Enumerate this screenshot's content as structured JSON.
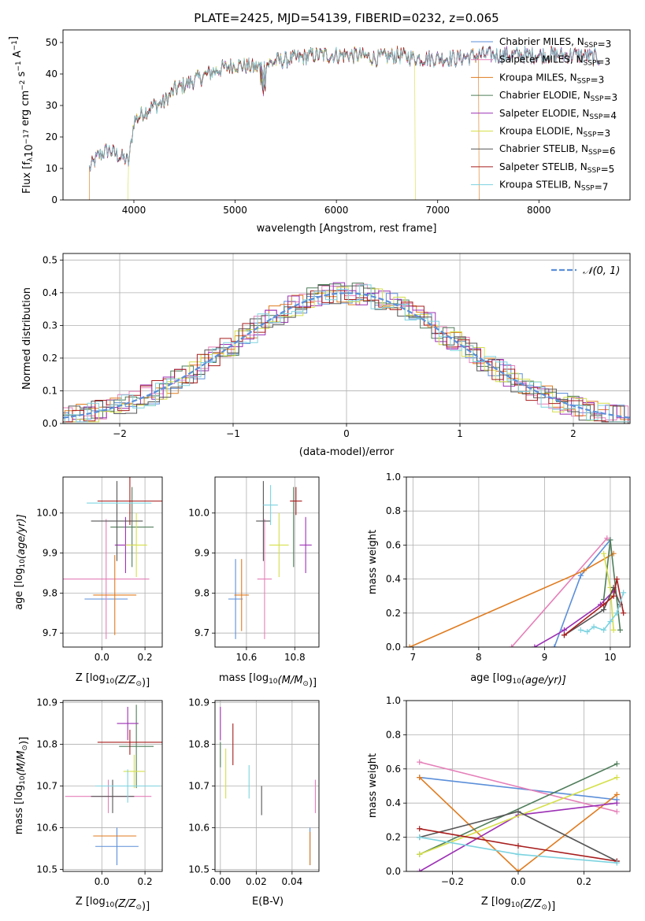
{
  "figure_title": "PLATE=2425, MJD=54139, FIBERID=0232, z=0.065",
  "colors": {
    "Chabrier MILES": "#5b8fd9",
    "Salpeter MILES": "#e57fb8",
    "Kroupa MILES": "#e07b1f",
    "Chabrier ELODIE": "#4f7d5a",
    "Salpeter ELODIE": "#9c31b5",
    "Kroupa ELODIE": "#d5e04a",
    "Chabrier STELIB": "#555555",
    "Salpeter STELIB": "#a81d1d",
    "Kroupa STELIB": "#7dd3e0",
    "gauss": "#5b8fd9",
    "grid": "#b0b0b0"
  },
  "chart_data": [
    {
      "id": "spectrum",
      "type": "line",
      "title": "PLATE=2425, MJD=54139, FIBERID=0232, z=0.065",
      "xlabel": "wavelength [Angstrom, rest frame]",
      "ylabel_text": "Flux [f",
      "ylabel_sub": "λ",
      "ylabel_mid": "10",
      "ylabel_sup1": "−17",
      "ylabel_rest": " erg cm",
      "ylabel_sup2": "−2",
      "ylabel_s": " s",
      "ylabel_sup3": "−1",
      "ylabel_A": " A",
      "ylabel_sup4": "−1",
      "ylabel_end": "]",
      "xlim": [
        3300,
        8900
      ],
      "ylim": [
        0,
        54
      ],
      "xticks": [
        4000,
        5000,
        6000,
        7000,
        8000
      ],
      "yticks": [
        0,
        10,
        20,
        30,
        40,
        50
      ],
      "grid": false,
      "legend_position": "top-right",
      "legend": [
        {
          "pre": "Chabrier MILES, N",
          "sub": "SSP",
          "post": "=3",
          "series": "Chabrier MILES"
        },
        {
          "pre": "Salpeter MILES, N",
          "sub": "SSP",
          "post": "=3",
          "series": "Salpeter MILES"
        },
        {
          "pre": "Kroupa MILES, N",
          "sub": "SSP",
          "post": "=3",
          "series": "Kroupa MILES"
        },
        {
          "pre": "Chabrier ELODIE, N",
          "sub": "SSP",
          "post": "=3",
          "series": "Chabrier ELODIE"
        },
        {
          "pre": "Salpeter ELODIE, N",
          "sub": "SSP",
          "post": "=4",
          "series": "Salpeter ELODIE"
        },
        {
          "pre": "Kroupa ELODIE, N",
          "sub": "SSP",
          "post": "=3",
          "series": "Kroupa ELODIE"
        },
        {
          "pre": "Chabrier STELIB, N",
          "sub": "SSP",
          "post": "=6",
          "series": "Chabrier STELIB"
        },
        {
          "pre": "Salpeter STELIB, N",
          "sub": "SSP",
          "post": "=5",
          "series": "Salpeter STELIB"
        },
        {
          "pre": "Kroupa STELIB, N",
          "sub": "SSP",
          "post": "=7",
          "series": "Kroupa STELIB"
        }
      ],
      "continuum": {
        "x": [
          3560,
          3650,
          3750,
          3850,
          3950,
          4000,
          4100,
          4200,
          4300,
          4400,
          4600,
          4800,
          5000,
          5200,
          5400,
          5600,
          5800,
          6000,
          6200,
          6400,
          6600,
          6800,
          7000,
          7200,
          7400,
          7600,
          7800,
          8000,
          8200,
          8400,
          8600
        ],
        "y": [
          10,
          14,
          16,
          14,
          12,
          25,
          28,
          30,
          31,
          35,
          38,
          41,
          43,
          42,
          44,
          45,
          46,
          46,
          46,
          45,
          46,
          45,
          45,
          45,
          46,
          46,
          46,
          46,
          46,
          46,
          45
        ]
      },
      "mask_edges": {
        "Kroupa ELODIE": {
          "start": 3940,
          "stop": 6780
        },
        "Kroupa MILES": {
          "start": 3560,
          "stop": 7410
        }
      }
    },
    {
      "id": "residuals",
      "type": "histogram",
      "xlabel": "(data-model)/error",
      "ylabel": "Normed distribution",
      "xlim": [
        -2.5,
        2.5
      ],
      "ylim": [
        0,
        0.52
      ],
      "xticks": [
        -2,
        -1,
        0,
        1,
        2
      ],
      "yticks": [
        0.0,
        0.1,
        0.2,
        0.3,
        0.4,
        0.5
      ],
      "grid": true,
      "legend_position": "top-right",
      "gauss_label": "𝒩(0, 1)",
      "bin_width": 0.1,
      "bin_start": -2.5
    },
    {
      "id": "age_vs_Z",
      "type": "errorbar",
      "xlabel_pre": "Z [log",
      "xlabel_sub": "10",
      "xlabel_post": "(Z/Z",
      "xlabel_sub2": "⊙",
      "xlabel_end": ")]",
      "ylabel_pre": "age  [log",
      "ylabel_sub": "10",
      "ylabel_post": "(age/yr)]",
      "xlim": [
        -0.18,
        0.28
      ],
      "ylim": [
        9.665,
        10.09
      ],
      "xticks": [
        0.0,
        0.2
      ],
      "yticks": [
        9.7,
        9.8,
        9.9,
        10.0
      ],
      "grid": true,
      "points": [
        {
          "s": "Chabrier MILES",
          "x": 0.02,
          "y": 9.785,
          "xe": 0.1,
          "ye": 0.0
        },
        {
          "s": "Salpeter MILES",
          "x": 0.02,
          "y": 9.835,
          "xe": 0.2,
          "ye": 0.15
        },
        {
          "s": "Kroupa MILES",
          "x": 0.06,
          "y": 9.795,
          "xe": 0.1,
          "ye": 0.1
        },
        {
          "s": "Chabrier ELODIE",
          "x": 0.14,
          "y": 9.965,
          "xe": 0.1,
          "ye": 0.1
        },
        {
          "s": "Salpeter ELODIE",
          "x": 0.11,
          "y": 9.92,
          "xe": 0.05,
          "ye": 0.07
        },
        {
          "s": "Kroupa ELODIE",
          "x": 0.16,
          "y": 9.92,
          "xe": 0.05,
          "ye": 0.08
        },
        {
          "s": "Chabrier STELIB",
          "x": 0.07,
          "y": 9.98,
          "xe": 0.12,
          "ye": 0.1
        },
        {
          "s": "Salpeter STELIB",
          "x": 0.13,
          "y": 10.03,
          "xe": 0.15,
          "ye": 0.06
        },
        {
          "s": "Kroupa STELIB",
          "x": 0.08,
          "y": 10.025,
          "xe": 0.15,
          "ye": 0.0
        }
      ]
    },
    {
      "id": "age_vs_mass",
      "type": "errorbar",
      "xlabel_pre": "mass [log",
      "xlabel_sub": "10",
      "xlabel_post": "(M/M",
      "xlabel_sub2": "⊙",
      "xlabel_end": ")]",
      "xlim": [
        10.47,
        10.9
      ],
      "ylim": [
        9.665,
        10.09
      ],
      "xticks": [
        10.6,
        10.8
      ],
      "yticks": [
        9.7,
        9.8,
        9.9,
        10.0
      ],
      "grid": true,
      "points": [
        {
          "s": "Chabrier MILES",
          "x": 10.555,
          "y": 9.785,
          "xe": 0.03,
          "ye": 0.1
        },
        {
          "s": "Salpeter MILES",
          "x": 10.675,
          "y": 9.835,
          "xe": 0.03,
          "ye": 0.15
        },
        {
          "s": "Kroupa MILES",
          "x": 10.58,
          "y": 9.795,
          "xe": 0.03,
          "ye": 0.09
        },
        {
          "s": "Chabrier ELODIE",
          "x": 10.795,
          "y": 9.965,
          "xe": 0.0,
          "ye": 0.1
        },
        {
          "s": "Salpeter ELODIE",
          "x": 10.845,
          "y": 9.92,
          "xe": 0.025,
          "ye": 0.07
        },
        {
          "s": "Kroupa ELODIE",
          "x": 10.735,
          "y": 9.92,
          "xe": 0.04,
          "ye": 0.08
        },
        {
          "s": "Chabrier STELIB",
          "x": 10.67,
          "y": 9.98,
          "xe": 0.03,
          "ye": 0.1
        },
        {
          "s": "Salpeter STELIB",
          "x": 10.805,
          "y": 10.03,
          "xe": 0.025,
          "ye": 0.035
        },
        {
          "s": "Kroupa STELIB",
          "x": 10.7,
          "y": 10.02,
          "xe": 0.03,
          "ye": 0.05
        }
      ]
    },
    {
      "id": "weight_vs_age",
      "type": "line",
      "xlabel_pre": "age  [log",
      "xlabel_sub": "10",
      "xlabel_post": "(age/yr)]",
      "ylabel": "mass weight",
      "xlim": [
        6.9,
        10.3
      ],
      "ylim": [
        0.0,
        1.0
      ],
      "xticks": [
        7,
        8,
        9,
        10
      ],
      "yticks": [
        0.0,
        0.2,
        0.4,
        0.6,
        0.8,
        1.0
      ],
      "grid": true,
      "series": [
        {
          "s": "Chabrier MILES",
          "x": [
            9.15,
            9.55,
            10.0
          ],
          "y": [
            0.0,
            0.42,
            0.63
          ]
        },
        {
          "s": "Salpeter MILES",
          "x": [
            8.5,
            9.95
          ],
          "y": [
            0.0,
            0.64
          ]
        },
        {
          "s": "Kroupa MILES",
          "x": [
            6.95,
            9.6,
            10.05
          ],
          "y": [
            0.0,
            0.45,
            0.55
          ]
        },
        {
          "s": "Chabrier ELODIE",
          "x": [
            9.9,
            10.0,
            10.15
          ],
          "y": [
            0.28,
            0.63,
            0.1
          ]
        },
        {
          "s": "Salpeter ELODIE",
          "x": [
            8.85,
            9.3,
            9.85,
            10.05
          ],
          "y": [
            0.0,
            0.1,
            0.25,
            0.33
          ]
        },
        {
          "s": "Kroupa ELODIE",
          "x": [
            9.9,
            10.0,
            10.05
          ],
          "y": [
            0.55,
            0.35,
            0.1
          ]
        },
        {
          "s": "Chabrier STELIB",
          "x": [
            9.3,
            9.9,
            10.05,
            10.15
          ],
          "y": [
            0.07,
            0.22,
            0.35,
            0.25
          ]
        },
        {
          "s": "Salpeter STELIB",
          "x": [
            9.3,
            9.9,
            10.05,
            10.1,
            10.2
          ],
          "y": [
            0.07,
            0.25,
            0.3,
            0.4,
            0.2
          ]
        },
        {
          "s": "Kroupa STELIB",
          "x": [
            9.55,
            9.65,
            9.75,
            9.9,
            10.0,
            10.1,
            10.2
          ],
          "y": [
            0.1,
            0.09,
            0.12,
            0.1,
            0.15,
            0.2,
            0.32
          ]
        }
      ]
    },
    {
      "id": "mass_vs_Z",
      "type": "errorbar",
      "xlabel_pre": "Z [log",
      "xlabel_sub": "10",
      "xlabel_post": "(Z/Z",
      "xlabel_sub2": "⊙",
      "xlabel_end": ")]",
      "ylabel_pre": "mass [log",
      "ylabel_sub": "10",
      "ylabel_post": "(M/M",
      "ylabel_sub2": "⊙",
      "ylabel_end": ")]",
      "xlim": [
        -0.18,
        0.28
      ],
      "ylim": [
        10.495,
        10.905
      ],
      "xticks": [
        0.0,
        0.2
      ],
      "yticks": [
        10.5,
        10.6,
        10.7,
        10.8,
        10.9
      ],
      "grid": true,
      "points": [
        {
          "s": "Chabrier MILES",
          "x": 0.07,
          "y": 10.555,
          "xe": 0.1,
          "ye": 0.045
        },
        {
          "s": "Salpeter MILES",
          "x": 0.03,
          "y": 10.675,
          "xe": 0.2,
          "ye": 0.04
        },
        {
          "s": "Kroupa MILES",
          "x": 0.06,
          "y": 10.58,
          "xe": 0.1,
          "ye": 0.0
        },
        {
          "s": "Chabrier ELODIE",
          "x": 0.16,
          "y": 10.795,
          "xe": 0.08,
          "ye": 0.1
        },
        {
          "s": "Salpeter ELODIE",
          "x": 0.12,
          "y": 10.85,
          "xe": 0.05,
          "ye": 0.04
        },
        {
          "s": "Kroupa ELODIE",
          "x": 0.15,
          "y": 10.735,
          "xe": 0.05,
          "ye": 0.04
        },
        {
          "s": "Chabrier STELIB",
          "x": 0.05,
          "y": 10.675,
          "xe": 0.1,
          "ye": 0.04
        },
        {
          "s": "Salpeter STELIB",
          "x": 0.13,
          "y": 10.805,
          "xe": 0.15,
          "ye": 0.03
        },
        {
          "s": "Kroupa STELIB",
          "x": 0.12,
          "y": 10.7,
          "xe": 0.15,
          "ye": 0.04
        }
      ]
    },
    {
      "id": "mass_vs_ebv",
      "type": "errorbar",
      "xlabel": "E(B-V)",
      "xlim": [
        -0.003,
        0.055
      ],
      "ylim": [
        10.495,
        10.905
      ],
      "xticks": [
        0.0,
        0.02,
        0.04
      ],
      "xticklabels": [
        "0.00",
        "0.02",
        "0.04"
      ],
      "yticks": [
        10.5,
        10.6,
        10.7,
        10.8,
        10.9
      ],
      "grid": true,
      "points": [
        {
          "s": "Chabrier MILES",
          "x": 0.05,
          "y": 10.555,
          "xe": 0.0,
          "ye": 0.045
        },
        {
          "s": "Salpeter MILES",
          "x": 0.053,
          "y": 10.675,
          "xe": 0.0,
          "ye": 0.04
        },
        {
          "s": "Kroupa MILES",
          "x": 0.05,
          "y": 10.55,
          "xe": 0.0,
          "ye": 0.04
        },
        {
          "s": "Chabrier ELODIE",
          "x": 0.0,
          "y": 10.775,
          "xe": 0.0,
          "ye": 0.03
        },
        {
          "s": "Salpeter ELODIE",
          "x": 0.0,
          "y": 10.85,
          "xe": 0.0,
          "ye": 0.04
        },
        {
          "s": "Kroupa ELODIE",
          "x": 0.003,
          "y": 10.73,
          "xe": 0.0,
          "ye": 0.06
        },
        {
          "s": "Chabrier STELIB",
          "x": 0.023,
          "y": 10.665,
          "xe": 0.0,
          "ye": 0.035
        },
        {
          "s": "Salpeter STELIB",
          "x": 0.007,
          "y": 10.8,
          "xe": 0.0,
          "ye": 0.05
        },
        {
          "s": "Kroupa STELIB",
          "x": 0.016,
          "y": 10.71,
          "xe": 0.0,
          "ye": 0.04
        }
      ]
    },
    {
      "id": "weight_vs_Z",
      "type": "line",
      "xlabel_pre": "Z [log",
      "xlabel_sub": "10",
      "xlabel_post": "(Z/Z",
      "xlabel_sub2": "⊙",
      "xlabel_end": ")]",
      "ylabel": "mass weight",
      "xlim": [
        -0.34,
        0.34
      ],
      "ylim": [
        0.0,
        1.0
      ],
      "xticks": [
        -0.2,
        0.0,
        0.2
      ],
      "yticks": [
        0.0,
        0.2,
        0.4,
        0.6,
        0.8,
        1.0
      ],
      "grid": true,
      "series": [
        {
          "s": "Chabrier MILES",
          "x": [
            -0.3,
            0.3
          ],
          "y": [
            0.55,
            0.42
          ]
        },
        {
          "s": "Salpeter MILES",
          "x": [
            -0.3,
            0.3
          ],
          "y": [
            0.64,
            0.35
          ]
        },
        {
          "s": "Kroupa MILES",
          "x": [
            -0.3,
            0.0,
            0.3
          ],
          "y": [
            0.55,
            0.0,
            0.45
          ]
        },
        {
          "s": "Chabrier ELODIE",
          "x": [
            -0.3,
            0.3
          ],
          "y": [
            0.1,
            0.63
          ]
        },
        {
          "s": "Salpeter ELODIE",
          "x": [
            -0.3,
            0.0,
            0.3
          ],
          "y": [
            0.0,
            0.33,
            0.4
          ]
        },
        {
          "s": "Kroupa ELODIE",
          "x": [
            -0.3,
            0.3
          ],
          "y": [
            0.1,
            0.55
          ]
        },
        {
          "s": "Chabrier STELIB",
          "x": [
            -0.3,
            0.0,
            0.3
          ],
          "y": [
            0.2,
            0.35,
            0.06
          ]
        },
        {
          "s": "Salpeter STELIB",
          "x": [
            -0.3,
            0.0,
            0.3
          ],
          "y": [
            0.25,
            0.15,
            0.06
          ]
        },
        {
          "s": "Kroupa STELIB",
          "x": [
            -0.3,
            0.0,
            0.3
          ],
          "y": [
            0.2,
            0.1,
            0.05
          ]
        }
      ]
    }
  ]
}
